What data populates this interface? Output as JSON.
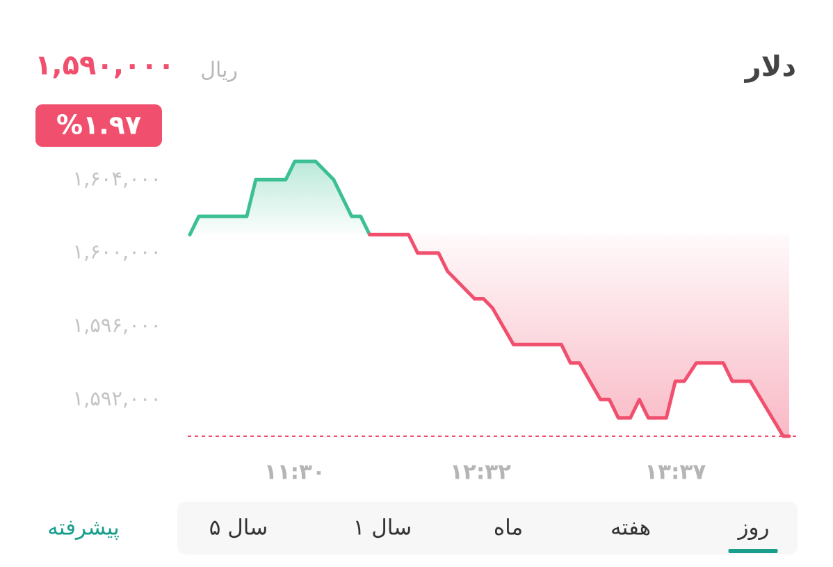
{
  "header": {
    "title": "دلار",
    "price": "۱,۵۹۰,۰۰۰",
    "unit": "ریال",
    "change": "%۱.۹۷"
  },
  "chart_data": {
    "type": "line",
    "x": [
      655,
      658,
      674,
      677,
      687,
      690,
      697,
      703,
      709,
      712,
      715,
      728,
      731,
      738,
      741,
      750,
      753,
      756,
      763,
      779,
      782,
      785,
      792,
      795,
      798,
      802,
      805,
      808,
      814,
      817,
      820,
      824,
      833,
      836,
      842,
      853,
      855
    ],
    "values": [
      1601000,
      1602000,
      1602000,
      1604000,
      1604000,
      1605000,
      1605000,
      1604000,
      1602000,
      1602000,
      1601000,
      1601000,
      1600000,
      1600000,
      1599000,
      1597500,
      1597500,
      1597000,
      1595000,
      1595000,
      1594000,
      1594000,
      1592000,
      1592000,
      1591000,
      1591000,
      1592000,
      1591000,
      1591000,
      1593000,
      1593000,
      1594000,
      1594000,
      1593000,
      1593000,
      1590000,
      1590000
    ],
    "up_color": "#3dbf95",
    "down_color": "#f0506e",
    "reference_line": 1590000,
    "xlim": [
      655,
      855
    ],
    "xticks": [
      {
        "value": 690,
        "label": "۱۱:۳۰"
      },
      {
        "value": 752,
        "label": "۱۲:۳۲"
      },
      {
        "value": 817,
        "label": "۱۳:۳۷"
      }
    ],
    "ylim": [
      1590000,
      1605000
    ],
    "yticks": [
      {
        "value": 1604000,
        "label": "۱,۶۰۴,۰۰۰"
      },
      {
        "value": 1600000,
        "label": "۱,۶۰۰,۰۰۰"
      },
      {
        "value": 1596000,
        "label": "۱,۵۹۶,۰۰۰"
      },
      {
        "value": 1592000,
        "label": "۱,۵۹۲,۰۰۰"
      }
    ]
  },
  "tabs": [
    "روز",
    "هفته",
    "ماه",
    "۱ سال",
    "۵ سال"
  ],
  "active_tab": 0,
  "advanced": "پیشرفته"
}
